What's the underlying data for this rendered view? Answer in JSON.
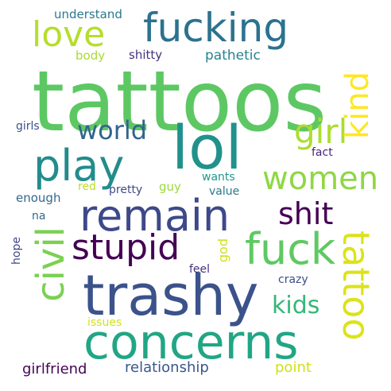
{
  "words": [
    {
      "text": "tattoos",
      "color": "#5dc863"
    },
    {
      "text": "lol",
      "color": "#21918c"
    },
    {
      "text": "trashy",
      "color": "#3b528b"
    },
    {
      "text": "concerns",
      "color": "#21a685"
    },
    {
      "text": "remain",
      "color": "#3e4989"
    },
    {
      "text": "play",
      "color": "#228c8d"
    },
    {
      "text": "fucking",
      "color": "#2c728e"
    },
    {
      "text": "fuck",
      "color": "#5ec962"
    },
    {
      "text": "stupid",
      "color": "#440154"
    },
    {
      "text": "love",
      "color": "#b5de2b"
    },
    {
      "text": "civil",
      "color": "#7ad151"
    },
    {
      "text": "tattoo",
      "color": "#dce319"
    },
    {
      "text": "women",
      "color": "#8fd744"
    },
    {
      "text": "shit",
      "color": "#440154"
    },
    {
      "text": "girl",
      "color": "#addc30"
    },
    {
      "text": "kind",
      "color": "#fde725"
    },
    {
      "text": "world",
      "color": "#32648e"
    },
    {
      "text": "kids",
      "color": "#35b779"
    },
    {
      "text": "relationship",
      "color": "#39568c"
    },
    {
      "text": "girlfriend",
      "color": "#450457"
    },
    {
      "text": "point",
      "color": "#cfe11c"
    },
    {
      "text": "pathetic",
      "color": "#26828e"
    },
    {
      "text": "understand",
      "color": "#2a788e"
    },
    {
      "text": "shitty",
      "color": "#46327e"
    },
    {
      "text": "body",
      "color": "#a8db34"
    },
    {
      "text": "girls",
      "color": "#3b528b"
    },
    {
      "text": "fact",
      "color": "#482677"
    },
    {
      "text": "wants",
      "color": "#1f988b"
    },
    {
      "text": "enough",
      "color": "#31688e"
    },
    {
      "text": "red",
      "color": "#bddf26"
    },
    {
      "text": "pretty",
      "color": "#3e4989"
    },
    {
      "text": "guy",
      "color": "#9bd93c"
    },
    {
      "text": "value",
      "color": "#2a788e"
    },
    {
      "text": "na",
      "color": "#31688e"
    },
    {
      "text": "hope",
      "color": "#404688"
    },
    {
      "text": "god",
      "color": "#cde11d"
    },
    {
      "text": "feel",
      "color": "#46337f"
    },
    {
      "text": "crazy",
      "color": "#3c4f8a"
    },
    {
      "text": "issues",
      "color": "#d2e21b"
    }
  ]
}
